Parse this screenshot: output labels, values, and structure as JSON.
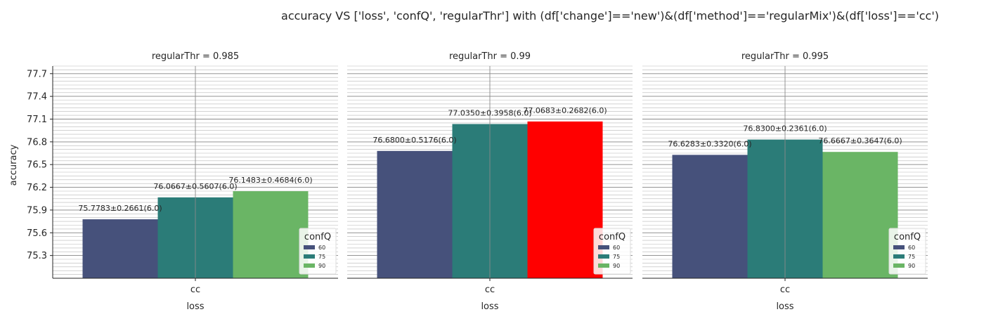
{
  "title": "accuracy VS ['loss', 'confQ', 'regularThr'] with (df['change']=='new')&(df['method']=='regularMix')&(df['loss']=='cc')",
  "chart_data": {
    "type": "bar",
    "ylabel": "accuracy",
    "xlabel": "loss",
    "categories": [
      "cc"
    ],
    "ylim": [
      75.0,
      77.8
    ],
    "yticks": [
      "75.3",
      "75.6",
      "75.9",
      "76.2",
      "76.5",
      "76.8",
      "77.1",
      "77.4",
      "77.7"
    ],
    "grid": true,
    "legend": {
      "title": "confQ",
      "entries": [
        "60",
        "75",
        "90"
      ],
      "placement": "lower-right"
    },
    "colors": {
      "60": "#46517b",
      "75": "#2b7c78",
      "90": "#6ab565",
      "highlight": "#ff0000"
    },
    "panels": [
      {
        "title": "regularThr = 0.985",
        "bars": [
          {
            "series": "60",
            "value": 75.7783,
            "label": "75.7783±0.2661(6.0)"
          },
          {
            "series": "75",
            "value": 76.0667,
            "label": "76.0667±0.5607(6.0)"
          },
          {
            "series": "90",
            "value": 76.1483,
            "label": "76.1483±0.4684(6.0)"
          }
        ]
      },
      {
        "title": "regularThr = 0.99",
        "bars": [
          {
            "series": "60",
            "value": 76.68,
            "label": "76.6800±0.5176(6.0)"
          },
          {
            "series": "75",
            "value": 77.035,
            "label": "77.0350±0.3958(6.0)"
          },
          {
            "series": "90",
            "value": 77.0683,
            "label": "77.0683±0.2682(6.0)",
            "highlight": true
          }
        ]
      },
      {
        "title": "regularThr = 0.995",
        "bars": [
          {
            "series": "60",
            "value": 76.6283,
            "label": "76.6283±0.3320(6.0)"
          },
          {
            "series": "75",
            "value": 76.83,
            "label": "76.8300±0.2361(6.0)"
          },
          {
            "series": "90",
            "value": 76.6667,
            "label": "76.6667±0.3647(6.0)"
          }
        ]
      }
    ]
  }
}
